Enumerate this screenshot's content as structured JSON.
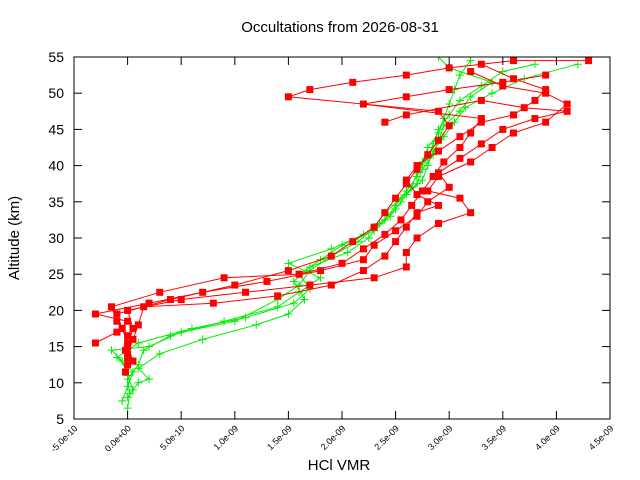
{
  "chart_data": {
    "type": "scatter",
    "title": "Occultations from 2026-08-31",
    "xlabel": "HCl VMR",
    "ylabel": "Altitude (km)",
    "xlim": [
      -5e-10,
      4.5e-09
    ],
    "ylim": [
      5,
      55
    ],
    "x_ticks": [
      -5e-10,
      0,
      5e-10,
      1e-09,
      1.5e-09,
      2e-09,
      2.5e-09,
      3e-09,
      3.5e-09,
      4e-09,
      4.5e-09
    ],
    "x_tick_labels": [
      "-5.0e-10",
      "0.0e+00",
      "5.0e-10",
      "1.0e-09",
      "1.5e-09",
      "2.0e-09",
      "2.5e-09",
      "3.0e-09",
      "3.5e-09",
      "4.0e-09",
      "4.5e-09"
    ],
    "y_ticks": [
      5,
      10,
      15,
      20,
      25,
      30,
      35,
      40,
      45,
      50,
      55
    ],
    "y_tick_labels": [
      "5",
      "10",
      "15",
      "20",
      "25",
      "30",
      "35",
      "40",
      "45",
      "50",
      "55"
    ],
    "grid": false,
    "series": [
      {
        "marker": "square",
        "color": "#ff0000",
        "profiles": [
          [
            [
              -2e-11,
              11.5
            ],
            [
              0.0,
              13.5
            ],
            [
              0.0,
              15.5
            ],
            [
              -5e-11,
              17.5
            ],
            [
              -1e-10,
              19.5
            ],
            [
              4e-10,
              21.5
            ],
            [
              1e-09,
              23.5
            ],
            [
              1.5e-09,
              25.5
            ],
            [
              1.9e-09,
              27.5
            ],
            [
              2.1e-09,
              29.5
            ],
            [
              2.3e-09,
              31.5
            ],
            [
              2.4e-09,
              33.5
            ],
            [
              2.5e-09,
              35.5
            ],
            [
              2.6e-09,
              37.5
            ],
            [
              2.7e-09,
              39.5
            ],
            [
              2.8e-09,
              41.5
            ],
            [
              2.9e-09,
              43.5
            ],
            [
              3e-09,
              45.5
            ],
            [
              2.9e-09,
              47.5
            ],
            [
              1.5e-09,
              49.5
            ],
            [
              1.7e-09,
              50.5
            ],
            [
              2.1e-09,
              51.5
            ],
            [
              2.6e-09,
              52.5
            ],
            [
              3e-09,
              53.5
            ],
            [
              3.6e-09,
              54.5
            ],
            [
              4.3e-09,
              54.5
            ]
          ],
          [
            [
              0.0,
              12.5
            ],
            [
              -2e-11,
              14.5
            ],
            [
              0.0,
              16.5
            ],
            [
              -1e-10,
              18.5
            ],
            [
              -1.5e-10,
              20.5
            ],
            [
              3e-10,
              22.5
            ],
            [
              9e-10,
              24.5
            ],
            [
              1.6e-09,
              25.0
            ],
            [
              2e-09,
              26.5
            ],
            [
              2.2e-09,
              28.5
            ],
            [
              2.4e-09,
              30.5
            ],
            [
              2.55e-09,
              32.5
            ],
            [
              2.65e-09,
              34.5
            ],
            [
              2.75e-09,
              36.5
            ],
            [
              2.85e-09,
              38.5
            ],
            [
              2.95e-09,
              40.5
            ],
            [
              3.1e-09,
              42.5
            ],
            [
              3.2e-09,
              44.5
            ],
            [
              3.3e-09,
              46.5
            ],
            [
              2.2e-09,
              48.5
            ],
            [
              2.6e-09,
              49.5
            ],
            [
              3e-09,
              50.5
            ],
            [
              3.5e-09,
              51.5
            ],
            [
              3.9e-09,
              52.5
            ]
          ],
          [
            [
              -3e-10,
              15.5
            ],
            [
              -1e-10,
              17.0
            ],
            [
              0.0,
              18.5
            ],
            [
              -3e-10,
              19.5
            ],
            [
              2e-10,
              21.0
            ],
            [
              7e-10,
              22.5
            ],
            [
              1.3e-09,
              24.0
            ],
            [
              1.8e-09,
              25.5
            ],
            [
              2.2e-09,
              27.0
            ],
            [
              2.3e-09,
              29.0
            ],
            [
              2.5e-09,
              31.0
            ],
            [
              2.7e-09,
              33.0
            ],
            [
              2.8e-09,
              35.0
            ],
            [
              3e-09,
              37.0
            ],
            [
              2.9e-09,
              39.0
            ],
            [
              3.1e-09,
              41.0
            ],
            [
              3.3e-09,
              43.0
            ],
            [
              3.5e-09,
              45.0
            ],
            [
              3.8e-09,
              46.5
            ],
            [
              4.1e-09,
              47.5
            ],
            [
              3.7e-09,
              48.0
            ],
            [
              3.3e-09,
              49.0
            ],
            [
              2.6e-09,
              47.0
            ],
            [
              2.4e-09,
              46.0
            ]
          ],
          [
            [
              5e-11,
              13.0
            ],
            [
              0.0,
              15.0
            ],
            [
              5e-11,
              17.5
            ],
            [
              0.0,
              20.0
            ],
            [
              5e-10,
              21.5
            ],
            [
              1.1e-09,
              22.5
            ],
            [
              1.7e-09,
              23.5
            ],
            [
              2.3e-09,
              24.5
            ],
            [
              2.6e-09,
              26.0
            ],
            [
              2.6e-09,
              28.0
            ],
            [
              2.7e-09,
              30.0
            ],
            [
              2.9e-09,
              32.0
            ],
            [
              3.2e-09,
              33.5
            ],
            [
              3.1e-09,
              35.5
            ],
            [
              2.8e-09,
              36.5
            ],
            [
              2.9e-09,
              38.5
            ],
            [
              3.2e-09,
              40.5
            ],
            [
              3.4e-09,
              42.5
            ],
            [
              3.6e-09,
              44.5
            ],
            [
              3.9e-09,
              46.0
            ],
            [
              4.1e-09,
              48.5
            ],
            [
              3.9e-09,
              50.0
            ],
            [
              3.5e-09,
              51.0
            ],
            [
              3.2e-09,
              53.0
            ]
          ],
          [
            [
              0.0,
              14.0
            ],
            [
              5e-11,
              16.0
            ],
            [
              1e-10,
              18.0
            ],
            [
              1.5e-10,
              20.5
            ],
            [
              8e-10,
              21.0
            ],
            [
              1.4e-09,
              22.0
            ],
            [
              1.9e-09,
              23.5
            ],
            [
              2.2e-09,
              25.5
            ],
            [
              2.4e-09,
              27.5
            ],
            [
              2.5e-09,
              29.5
            ],
            [
              2.6e-09,
              31.5
            ],
            [
              2.7e-09,
              33.5
            ],
            [
              2.9e-09,
              34.5
            ],
            [
              2.7e-09,
              36.0
            ],
            [
              2.6e-09,
              38.0
            ],
            [
              2.7e-09,
              40.0
            ],
            [
              2.9e-09,
              42.0
            ],
            [
              3.1e-09,
              44.0
            ],
            [
              3.3e-09,
              46.0
            ],
            [
              3.6e-09,
              47.0
            ],
            [
              3.8e-09,
              49.0
            ],
            [
              3.9e-09,
              50.5
            ],
            [
              3.6e-09,
              52.0
            ],
            [
              3.3e-09,
              54.0
            ]
          ]
        ]
      },
      {
        "marker": "plus",
        "color": "#00ee00",
        "profiles": [
          [
            [
              0.0,
              6.5
            ],
            [
              2e-11,
              8.5
            ],
            [
              0.0,
              10.5
            ],
            [
              1e-10,
              12.5
            ],
            [
              1.5e-10,
              14.5
            ],
            [
              4e-10,
              16.5
            ],
            [
              9e-10,
              18.5
            ],
            [
              1.4e-09,
              20.5
            ],
            [
              1.6e-09,
              22.5
            ],
            [
              1.8e-09,
              24.5
            ],
            [
              1.5e-09,
              26.5
            ],
            [
              1.9e-09,
              28.5
            ],
            [
              2.2e-09,
              30.5
            ],
            [
              2.4e-09,
              32.5
            ],
            [
              2.5e-09,
              34.5
            ],
            [
              2.6e-09,
              36.5
            ],
            [
              2.7e-09,
              38.5
            ],
            [
              2.75e-09,
              40.5
            ],
            [
              2.8e-09,
              42.5
            ],
            [
              2.9e-09,
              44.5
            ],
            [
              2.95e-09,
              46.5
            ],
            [
              3e-09,
              48.5
            ],
            [
              3.05e-09,
              50.5
            ],
            [
              3.1e-09,
              52.5
            ],
            [
              3.2e-09,
              54.5
            ]
          ],
          [
            [
              -5e-11,
              7.5
            ],
            [
              0.0,
              9.5
            ],
            [
              5e-11,
              11.5
            ],
            [
              -1e-10,
              13.5
            ],
            [
              1e-10,
              15.5
            ],
            [
              6e-10,
              17.5
            ],
            [
              1.1e-09,
              19.0
            ],
            [
              1.55e-09,
              21.0
            ],
            [
              1.7e-09,
              23.0
            ],
            [
              1.6e-09,
              25.0
            ],
            [
              1.8e-09,
              27.0
            ],
            [
              2e-09,
              29.0
            ],
            [
              2.3e-09,
              31.0
            ],
            [
              2.45e-09,
              33.0
            ],
            [
              2.55e-09,
              35.0
            ],
            [
              2.65e-09,
              37.0
            ],
            [
              2.7e-09,
              39.0
            ],
            [
              2.8e-09,
              41.0
            ],
            [
              2.85e-09,
              43.0
            ],
            [
              2.9e-09,
              45.0
            ],
            [
              3e-09,
              47.0
            ],
            [
              3.1e-09,
              49.0
            ],
            [
              3.3e-09,
              51.0
            ],
            [
              3.5e-09,
              53.0
            ],
            [
              3.8e-09,
              54.0
            ]
          ],
          [
            [
              0.0,
              8.0
            ],
            [
              1e-10,
              10.0
            ],
            [
              2e-10,
              10.5
            ],
            [
              1e-10,
              12.0
            ],
            [
              3e-10,
              14.0
            ],
            [
              7e-10,
              16.0
            ],
            [
              1.2e-09,
              18.0
            ],
            [
              1.5e-09,
              19.5
            ],
            [
              1.65e-09,
              21.5
            ],
            [
              1.55e-09,
              24.0
            ],
            [
              1.7e-09,
              26.0
            ],
            [
              2.05e-09,
              28.0
            ],
            [
              2.25e-09,
              30.0
            ],
            [
              2.35e-09,
              32.0
            ],
            [
              2.5e-09,
              34.0
            ],
            [
              2.6e-09,
              36.0
            ],
            [
              2.75e-09,
              38.0
            ],
            [
              2.8e-09,
              40.0
            ],
            [
              2.85e-09,
              42.0
            ],
            [
              2.95e-09,
              44.0
            ],
            [
              3.05e-09,
              46.0
            ],
            [
              3.15e-09,
              48.0
            ],
            [
              3.4e-09,
              50.0
            ],
            [
              3.7e-09,
              52.0
            ],
            [
              4.2e-09,
              54.0
            ]
          ],
          [
            [
              5e-11,
              9.0
            ],
            [
              0.0,
              11.0
            ],
            [
              -5e-11,
              13.0
            ],
            [
              -1.5e-10,
              14.5
            ],
            [
              2e-10,
              15.0
            ],
            [
              5e-10,
              17.0
            ],
            [
              1e-09,
              18.5
            ],
            [
              1.4e-09,
              21.5
            ],
            [
              1.6e-09,
              23.5
            ],
            [
              1.7e-09,
              25.5
            ],
            [
              1.9e-09,
              27.5
            ],
            [
              2.15e-09,
              29.5
            ],
            [
              2.3e-09,
              31.5
            ],
            [
              2.4e-09,
              33.5
            ],
            [
              2.55e-09,
              35.5
            ],
            [
              2.7e-09,
              37.5
            ],
            [
              2.75e-09,
              39.5
            ],
            [
              2.85e-09,
              41.5
            ],
            [
              2.9e-09,
              43.5
            ],
            [
              2.95e-09,
              45.5
            ],
            [
              3.1e-09,
              47.5
            ],
            [
              3.2e-09,
              49.5
            ],
            [
              3.4e-09,
              51.5
            ],
            [
              3e-09,
              53.5
            ],
            [
              2.9e-09,
              55.0
            ]
          ]
        ]
      }
    ]
  }
}
